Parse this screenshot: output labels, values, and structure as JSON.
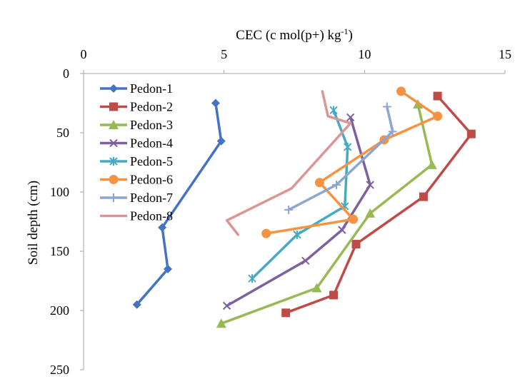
{
  "chart_data": {
    "type": "line",
    "title": "",
    "xlabel_main": "CEC (c mol(p+) kg",
    "xlabel_sup": "-1",
    "xlabel_tail": ")",
    "ylabel": "Soil depth (cm)",
    "xlim": [
      0,
      15
    ],
    "ylim": [
      0,
      250
    ],
    "y_inverted": true,
    "x_axis_position": "top",
    "xticks": [
      0,
      5,
      10,
      15
    ],
    "yticks": [
      0,
      50,
      100,
      150,
      200,
      250
    ],
    "grid": false,
    "legend_position": "top-left",
    "series": [
      {
        "name": "Pedon-1",
        "color": "#4472c4",
        "marker": "diamond",
        "x": [
          4.7,
          4.9,
          2.8,
          3.0,
          1.9
        ],
        "y": [
          25,
          57,
          130,
          165,
          195
        ]
      },
      {
        "name": "Pedon-2",
        "color": "#be4b48",
        "marker": "square",
        "x": [
          12.6,
          13.8,
          12.1,
          9.7,
          8.9,
          7.2
        ],
        "y": [
          19,
          51,
          104,
          144,
          187,
          202
        ]
      },
      {
        "name": "Pedon-3",
        "color": "#98b954",
        "marker": "triangle",
        "x": [
          11.9,
          12.4,
          10.2,
          8.3,
          4.9
        ],
        "y": [
          26,
          77,
          118,
          181,
          211
        ]
      },
      {
        "name": "Pedon-4",
        "color": "#7d60a0",
        "marker": "x",
        "x": [
          9.5,
          10.2,
          9.2,
          7.9,
          5.1
        ],
        "y": [
          37,
          94,
          132,
          158,
          196
        ]
      },
      {
        "name": "Pedon-5",
        "color": "#46aac5",
        "marker": "star",
        "x": [
          8.9,
          9.4,
          9.3,
          7.6,
          6.0
        ],
        "y": [
          31,
          62,
          112,
          136,
          173
        ]
      },
      {
        "name": "Pedon-6",
        "color": "#f69240",
        "marker": "circle",
        "x": [
          11.3,
          12.6,
          10.7,
          8.4,
          9.6,
          6.5
        ],
        "y": [
          15,
          36,
          56,
          92,
          123,
          135
        ]
      },
      {
        "name": "Pedon-7",
        "color": "#8ea5d4",
        "marker": "plus",
        "x": [
          10.8,
          11.0,
          9.0,
          7.3
        ],
        "y": [
          28,
          49,
          94,
          115
        ]
      },
      {
        "name": "Pedon-8",
        "color": "#d99694",
        "marker": "none",
        "x": [
          8.5,
          8.7,
          9.5,
          7.4,
          5.1,
          5.5
        ],
        "y": [
          15,
          36,
          42,
          97,
          124,
          136
        ]
      }
    ]
  }
}
